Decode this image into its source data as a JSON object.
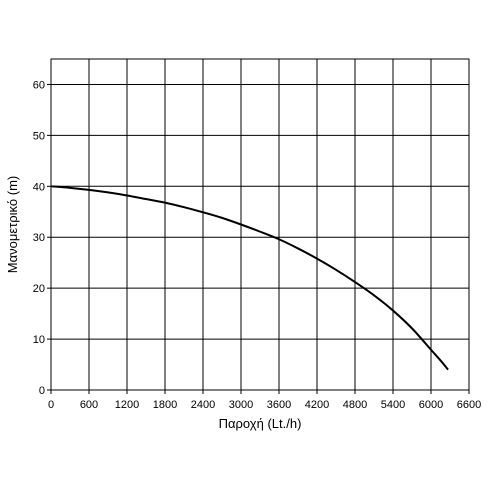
{
  "chart_data": {
    "type": "line",
    "title": "",
    "xlabel": "Παροχή (Lt./h)",
    "ylabel": "Μανομετρικό  (m)",
    "xlim": [
      0,
      6600
    ],
    "ylim": [
      0,
      65
    ],
    "x_ticks": [
      0,
      600,
      1200,
      1800,
      2400,
      3000,
      3600,
      4200,
      4800,
      5400,
      6000,
      6600
    ],
    "x_tick_labels": [
      "0",
      "600",
      "1200",
      "1800",
      "2400",
      "3000",
      "3600",
      "4200",
      "4800",
      "5400",
      "6000",
      "6600"
    ],
    "y_ticks": [
      0,
      10,
      20,
      30,
      40,
      50,
      60
    ],
    "y_tick_labels": [
      "0",
      "10",
      "20",
      "30",
      "40",
      "50",
      "60"
    ],
    "grid": true,
    "legend": "none",
    "series": [
      {
        "color": "#000000",
        "x": [
          0,
          300,
          600,
          900,
          1200,
          1500,
          1800,
          2100,
          2400,
          2700,
          3000,
          3300,
          3600,
          3900,
          4200,
          4500,
          4800,
          5100,
          5400,
          5700,
          6000,
          6150,
          6270
        ],
        "y": [
          40,
          39.7,
          39.3,
          38.8,
          38.2,
          37.5,
          36.8,
          35.9,
          34.9,
          33.8,
          32.5,
          31.1,
          29.6,
          27.8,
          25.8,
          23.6,
          21.2,
          18.6,
          15.6,
          12.1,
          7.9,
          5.8,
          4.0
        ]
      }
    ]
  }
}
